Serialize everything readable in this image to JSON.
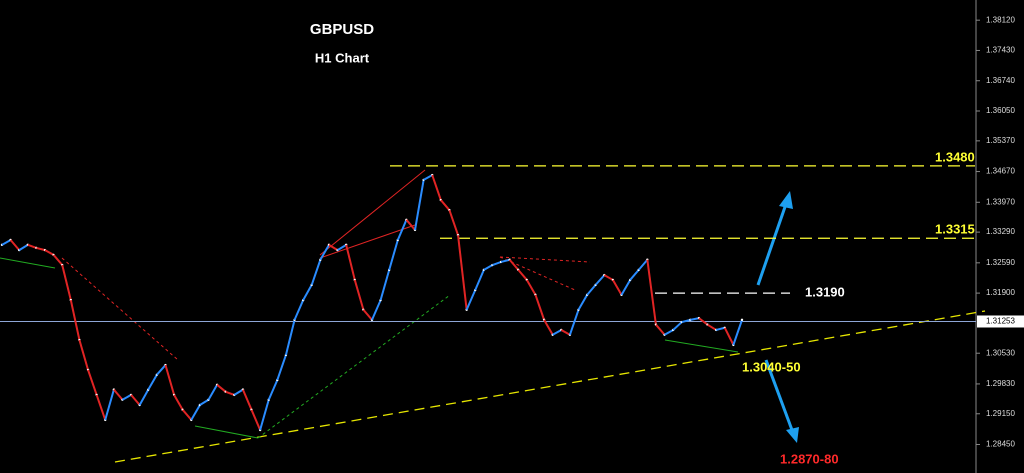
{
  "chart_data": {
    "type": "line",
    "title": "GBPUSD",
    "subtitle": "H1 Chart",
    "up_color": "#2a8cff",
    "down_color": "#e02424",
    "values": [
      1.33,
      1.3311,
      1.3288,
      1.33,
      1.3293,
      1.3288,
      1.3277,
      1.3254,
      1.3174,
      1.3083,
      1.3015,
      1.2958,
      1.2901,
      1.297,
      1.2947,
      1.2958,
      1.2935,
      1.297,
      1.3004,
      1.3026,
      1.2958,
      1.2924,
      1.2901,
      1.2935,
      1.2947,
      1.2981,
      1.2965,
      1.2958,
      1.297,
      1.2924,
      1.2878,
      1.2947,
      1.2992,
      1.3049,
      1.3129,
      1.3174,
      1.3209,
      1.3266,
      1.33,
      1.3288,
      1.33,
      1.322,
      1.3152,
      1.3129,
      1.3174,
      1.3243,
      1.3311,
      1.3357,
      1.3334,
      1.3448,
      1.3459,
      1.3402,
      1.3379,
      1.3322,
      1.3152,
      1.3197,
      1.3243,
      1.3254,
      1.3261,
      1.3266,
      1.3243,
      1.322,
      1.3186,
      1.3129,
      1.3095,
      1.3106,
      1.3095,
      1.3152,
      1.3186,
      1.3209,
      1.3231,
      1.322,
      1.3186,
      1.322,
      1.3243,
      1.3266,
      1.3118,
      1.3095,
      1.3106,
      1.3124,
      1.3129,
      1.3133,
      1.3118,
      1.3106,
      1.3111,
      1.3072,
      1.3129
    ],
    "ylim": [
      1.278,
      1.3858
    ],
    "yticks": [
      {
        "value": 1.3812,
        "label": "1.38120"
      },
      {
        "value": 1.3743,
        "label": "1.37430"
      },
      {
        "value": 1.3674,
        "label": "1.36740"
      },
      {
        "value": 1.3605,
        "label": "1.36050"
      },
      {
        "value": 1.3537,
        "label": "1.35370"
      },
      {
        "value": 1.3467,
        "label": "1.34670"
      },
      {
        "value": 1.3397,
        "label": "1.33970"
      },
      {
        "value": 1.3329,
        "label": "1.33290"
      },
      {
        "value": 1.3259,
        "label": "1.32590"
      },
      {
        "value": 1.319,
        "label": "1.31900"
      },
      {
        "value": 1.3053,
        "label": "1.30530"
      },
      {
        "value": 1.2983,
        "label": "1.29830"
      },
      {
        "value": 1.2915,
        "label": "1.29150"
      },
      {
        "value": 1.2845,
        "label": "1.28450"
      }
    ],
    "current_price": {
      "value": 1.31253,
      "label": "1.31253",
      "color": "#8ea6d6"
    },
    "levels": [
      {
        "value": 1.348,
        "label": "1.3480",
        "color": "#ffff33"
      },
      {
        "value": 1.3315,
        "label": "1.3315",
        "color": "#ffff33"
      },
      {
        "value": 1.319,
        "label": "1.3190",
        "color": "#ffffff"
      }
    ],
    "targets": [
      {
        "label": "1.3040-50",
        "color": "#ffff33"
      },
      {
        "label": "1.2870-80",
        "color": "#ff2a2a"
      }
    ]
  }
}
